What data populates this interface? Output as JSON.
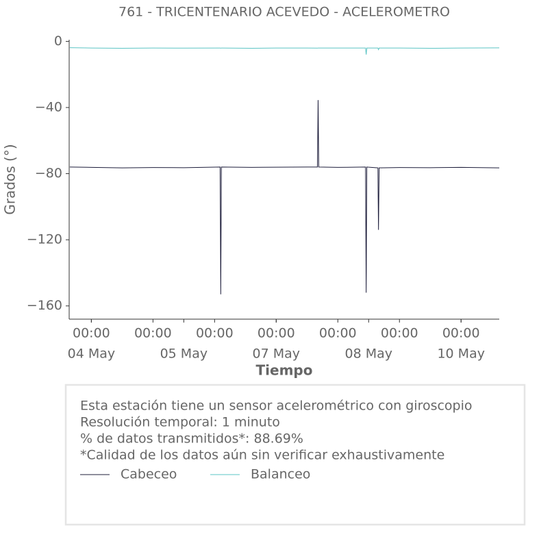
{
  "chart_data": {
    "type": "line",
    "title": "761 - TRICENTENARIO ACEVEDO - ACELEROMETRO",
    "x_label": "Tiempo",
    "y_label": "Grados (°)",
    "x": [
      3.65,
      4.0,
      4.5,
      5.0,
      5.5,
      6.09,
      6.1,
      6.11,
      6.6,
      7.0,
      7.5,
      7.67,
      7.68,
      7.69,
      8.0,
      8.45,
      8.46,
      8.47,
      8.65,
      8.66,
      8.67,
      9.0,
      9.5,
      10.0,
      10.62
    ],
    "series": [
      {
        "name": "Cabeceo",
        "color": "#1c1c3a",
        "values": [
          -76,
          -76.2,
          -76.5,
          -76.3,
          -76.4,
          -76,
          -153,
          -76,
          -76.2,
          -76.1,
          -76,
          -76,
          -35.5,
          -76,
          -76.2,
          -76,
          -152,
          -76,
          -76.5,
          -114,
          -76.5,
          -76.3,
          -76.4,
          -76.2,
          -76.5
        ]
      },
      {
        "name": "Balanceo",
        "color": "#5bc4c4",
        "values": [
          -3.8,
          -4,
          -4.2,
          -4,
          -4.1,
          -4,
          -4.1,
          -4,
          -4.2,
          -4,
          -4,
          -4.1,
          -4,
          -4,
          -4,
          -4,
          -8,
          -4,
          -4,
          -5,
          -4,
          -4,
          -4.2,
          -4,
          -3.9
        ]
      }
    ],
    "xlim": [
      3.64,
      10.62
    ],
    "ylim": [
      -168,
      1
    ],
    "yticks": [
      0,
      {
        "value": -40,
        "label": "−40"
      },
      {
        "value": -80,
        "label": "−80"
      },
      {
        "value": -120,
        "label": "−120"
      },
      {
        "value": -160,
        "label": "−160"
      }
    ],
    "xticks": [
      {
        "value": 4,
        "label": "00:00"
      },
      {
        "value": 5,
        "label": "00:00"
      },
      {
        "value": 6,
        "label": "00:00"
      },
      {
        "value": 7,
        "label": "00:00"
      },
      {
        "value": 8,
        "label": "00:00"
      },
      {
        "value": 9,
        "label": "00:00"
      },
      {
        "value": 10,
        "label": "00:00"
      }
    ],
    "xticks_dates": [
      {
        "value": 4,
        "label": "04 May"
      },
      {
        "value": 5.5,
        "label": "05 May"
      },
      {
        "value": 7,
        "label": "07 May"
      },
      {
        "value": 8.5,
        "label": "08 May"
      },
      {
        "value": 10,
        "label": "10 May"
      }
    ],
    "notes": [
      "Esta estación tiene un sensor acelerométrico con giroscopio",
      "Resolución temporal: 1 minuto",
      "% de datos transmitidos*: 88.69%",
      "*Calidad de los datos aún sin verificar exhaustivamente"
    ],
    "grid": false
  }
}
